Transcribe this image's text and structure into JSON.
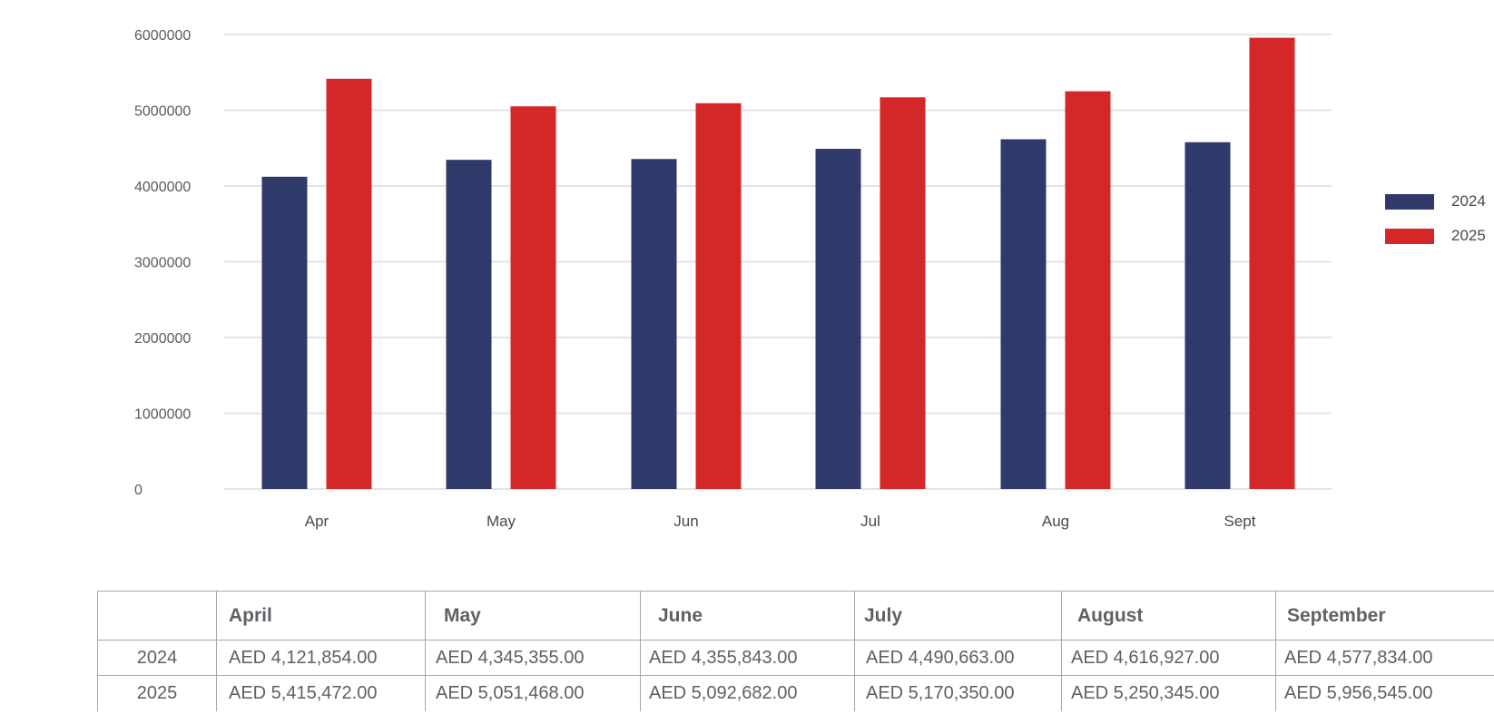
{
  "chart_data": {
    "type": "bar",
    "categories": [
      "Apr",
      "May",
      "Jun",
      "Jul",
      "Aug",
      "Sept"
    ],
    "series": [
      {
        "name": "2024",
        "color": "#2f3a6b",
        "values": [
          4121854,
          4345355,
          4355843,
          4490663,
          4616927,
          4577834
        ]
      },
      {
        "name": "2025",
        "color": "#d42727",
        "values": [
          5415472,
          5051468,
          5092682,
          5170350,
          5250345,
          5956545
        ]
      }
    ],
    "title": "",
    "xlabel": "",
    "ylabel": "",
    "ylim": [
      0,
      6000000
    ],
    "yticks": [
      "0",
      "1000000",
      "2000000",
      "3000000",
      "4000000",
      "5000000",
      "6000000"
    ],
    "grid": true,
    "legend": "right"
  },
  "table": {
    "headers": [
      "",
      "April",
      "May",
      "June",
      "July",
      "August",
      "September"
    ],
    "rows": [
      {
        "year": "2024",
        "cells": [
          "AED 4,121,854.00",
          "AED 4,345,355.00",
          "AED 4,355,843.00",
          "AED 4,490,663.00",
          "AED 4,616,927.00",
          "AED 4,577,834.00"
        ]
      },
      {
        "year": "2025",
        "cells": [
          "AED 5,415,472.00",
          "AED 5,051,468.00",
          "AED 5,092,682.00",
          "AED 5,170,350.00",
          "AED 5,250,345.00",
          "AED 5,956,545.00"
        ]
      }
    ]
  }
}
